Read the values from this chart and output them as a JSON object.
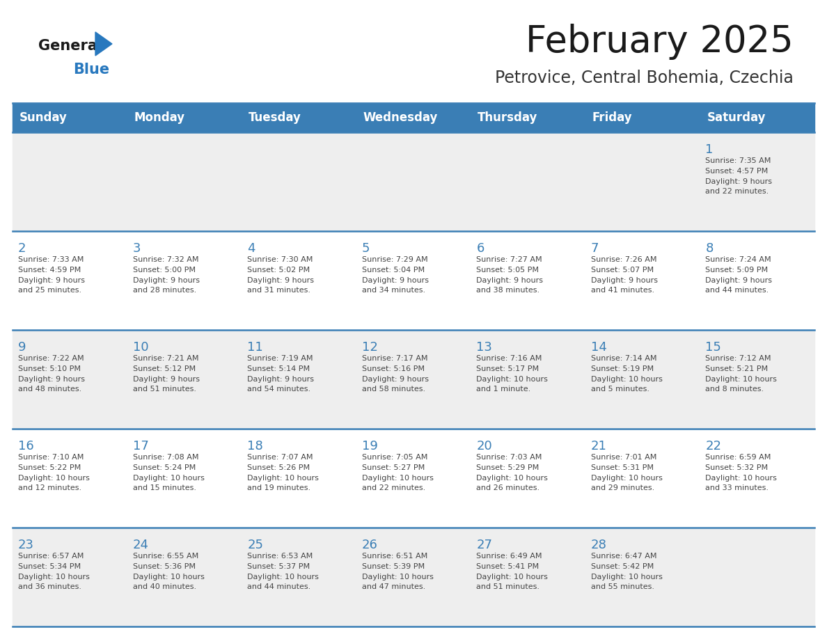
{
  "title": "February 2025",
  "subtitle": "Petrovice, Central Bohemia, Czechia",
  "header_bg": "#3A7EB5",
  "header_text": "#FFFFFF",
  "header_days": [
    "Sunday",
    "Monday",
    "Tuesday",
    "Wednesday",
    "Thursday",
    "Friday",
    "Saturday"
  ],
  "row_bg_odd": "#EEEEEE",
  "row_bg_even": "#FFFFFF",
  "cell_border_color": "#3A7EB5",
  "day_number_color": "#3A7EB5",
  "info_text_color": "#444444",
  "title_color": "#1A1A1A",
  "subtitle_color": "#333333",
  "logo_general_color": "#1A1A1A",
  "logo_blue_color": "#2878BE",
  "fig_width": 11.88,
  "fig_height": 9.18,
  "dpi": 100,
  "weeks": [
    {
      "days": [
        {
          "day": null,
          "info": null
        },
        {
          "day": null,
          "info": null
        },
        {
          "day": null,
          "info": null
        },
        {
          "day": null,
          "info": null
        },
        {
          "day": null,
          "info": null
        },
        {
          "day": null,
          "info": null
        },
        {
          "day": 1,
          "info": "Sunrise: 7:35 AM\nSunset: 4:57 PM\nDaylight: 9 hours\nand 22 minutes."
        }
      ]
    },
    {
      "days": [
        {
          "day": 2,
          "info": "Sunrise: 7:33 AM\nSunset: 4:59 PM\nDaylight: 9 hours\nand 25 minutes."
        },
        {
          "day": 3,
          "info": "Sunrise: 7:32 AM\nSunset: 5:00 PM\nDaylight: 9 hours\nand 28 minutes."
        },
        {
          "day": 4,
          "info": "Sunrise: 7:30 AM\nSunset: 5:02 PM\nDaylight: 9 hours\nand 31 minutes."
        },
        {
          "day": 5,
          "info": "Sunrise: 7:29 AM\nSunset: 5:04 PM\nDaylight: 9 hours\nand 34 minutes."
        },
        {
          "day": 6,
          "info": "Sunrise: 7:27 AM\nSunset: 5:05 PM\nDaylight: 9 hours\nand 38 minutes."
        },
        {
          "day": 7,
          "info": "Sunrise: 7:26 AM\nSunset: 5:07 PM\nDaylight: 9 hours\nand 41 minutes."
        },
        {
          "day": 8,
          "info": "Sunrise: 7:24 AM\nSunset: 5:09 PM\nDaylight: 9 hours\nand 44 minutes."
        }
      ]
    },
    {
      "days": [
        {
          "day": 9,
          "info": "Sunrise: 7:22 AM\nSunset: 5:10 PM\nDaylight: 9 hours\nand 48 minutes."
        },
        {
          "day": 10,
          "info": "Sunrise: 7:21 AM\nSunset: 5:12 PM\nDaylight: 9 hours\nand 51 minutes."
        },
        {
          "day": 11,
          "info": "Sunrise: 7:19 AM\nSunset: 5:14 PM\nDaylight: 9 hours\nand 54 minutes."
        },
        {
          "day": 12,
          "info": "Sunrise: 7:17 AM\nSunset: 5:16 PM\nDaylight: 9 hours\nand 58 minutes."
        },
        {
          "day": 13,
          "info": "Sunrise: 7:16 AM\nSunset: 5:17 PM\nDaylight: 10 hours\nand 1 minute."
        },
        {
          "day": 14,
          "info": "Sunrise: 7:14 AM\nSunset: 5:19 PM\nDaylight: 10 hours\nand 5 minutes."
        },
        {
          "day": 15,
          "info": "Sunrise: 7:12 AM\nSunset: 5:21 PM\nDaylight: 10 hours\nand 8 minutes."
        }
      ]
    },
    {
      "days": [
        {
          "day": 16,
          "info": "Sunrise: 7:10 AM\nSunset: 5:22 PM\nDaylight: 10 hours\nand 12 minutes."
        },
        {
          "day": 17,
          "info": "Sunrise: 7:08 AM\nSunset: 5:24 PM\nDaylight: 10 hours\nand 15 minutes."
        },
        {
          "day": 18,
          "info": "Sunrise: 7:07 AM\nSunset: 5:26 PM\nDaylight: 10 hours\nand 19 minutes."
        },
        {
          "day": 19,
          "info": "Sunrise: 7:05 AM\nSunset: 5:27 PM\nDaylight: 10 hours\nand 22 minutes."
        },
        {
          "day": 20,
          "info": "Sunrise: 7:03 AM\nSunset: 5:29 PM\nDaylight: 10 hours\nand 26 minutes."
        },
        {
          "day": 21,
          "info": "Sunrise: 7:01 AM\nSunset: 5:31 PM\nDaylight: 10 hours\nand 29 minutes."
        },
        {
          "day": 22,
          "info": "Sunrise: 6:59 AM\nSunset: 5:32 PM\nDaylight: 10 hours\nand 33 minutes."
        }
      ]
    },
    {
      "days": [
        {
          "day": 23,
          "info": "Sunrise: 6:57 AM\nSunset: 5:34 PM\nDaylight: 10 hours\nand 36 minutes."
        },
        {
          "day": 24,
          "info": "Sunrise: 6:55 AM\nSunset: 5:36 PM\nDaylight: 10 hours\nand 40 minutes."
        },
        {
          "day": 25,
          "info": "Sunrise: 6:53 AM\nSunset: 5:37 PM\nDaylight: 10 hours\nand 44 minutes."
        },
        {
          "day": 26,
          "info": "Sunrise: 6:51 AM\nSunset: 5:39 PM\nDaylight: 10 hours\nand 47 minutes."
        },
        {
          "day": 27,
          "info": "Sunrise: 6:49 AM\nSunset: 5:41 PM\nDaylight: 10 hours\nand 51 minutes."
        },
        {
          "day": 28,
          "info": "Sunrise: 6:47 AM\nSunset: 5:42 PM\nDaylight: 10 hours\nand 55 minutes."
        },
        {
          "day": null,
          "info": null
        }
      ]
    }
  ]
}
